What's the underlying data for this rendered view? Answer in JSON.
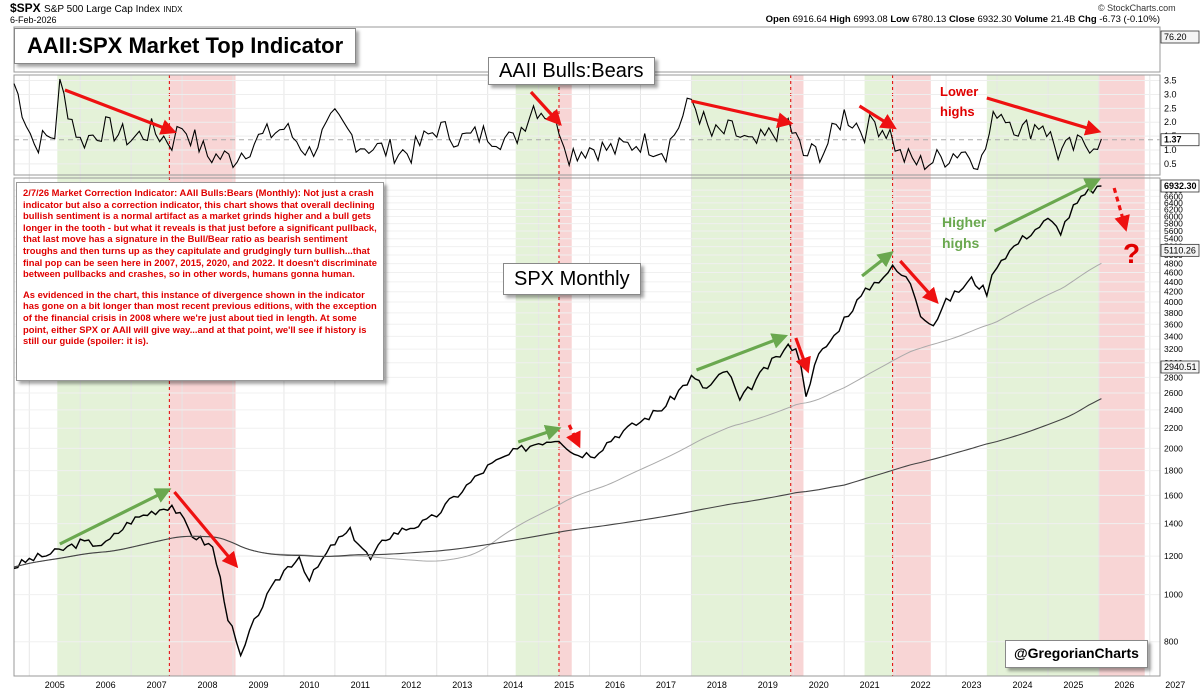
{
  "header": {
    "symbol": "$SPX",
    "name": "S&P 500 Large Cap Index",
    "exchange": "INDX",
    "date": "6-Feb-2026",
    "brand": "© StockCharts.com",
    "stats": [
      {
        "label": "Open",
        "value": "6916.64"
      },
      {
        "label": "High",
        "value": "6993.08"
      },
      {
        "label": "Low",
        "value": "6780.13"
      },
      {
        "label": "Close",
        "value": "6932.30"
      },
      {
        "label": "Volume",
        "value": "21.4B"
      },
      {
        "label": "Chg",
        "value": "-6.73 (-0.10%)"
      }
    ]
  },
  "title": "AAII:SPX Market Top Indicator",
  "indicator_label": "AAII Bulls:Bears",
  "price_label": "SPX Monthly",
  "note": {
    "paragraph1": "2/7/26 Market Correction Indicator: AAII Bulls:Bears (Monthly): Not just a crash indicator but also a correction indicator, this chart shows that overall declining bullish sentiment is a normal artifact as a market grinds higher and a bull gets longer in the tooth - but what it reveals is that just before a significant pullback, that last move has a signature in the Bull/Bear ratio as bearish sentiment troughs and then turns up as they capitulate and grudgingly turn bullish...that final pop can be seen here in 2007, 2015, 2020, and 2022. It doesn't discriminate between pullbacks and crashes, so in other words, humans gonna human.",
    "paragraph2": "As evidenced in the chart, this instance of divergence shown in the indicator has gone on a bit longer than most recent previous editions, with the exception of the financial crisis in 2008 where we're just about tied in length. At some point, either SPX or AAII will give way...and at that point, we'll see if history is still our guide (spoiler: it is)."
  },
  "annotations": {
    "lower_highs": "Lower highs",
    "higher_highs": "Higher highs",
    "question": "?"
  },
  "credit": "@GregorianCharts",
  "colors": {
    "up_arrow": "#6aa84f",
    "down_arrow": "#ee1111",
    "green_zone": "#e4f2d8",
    "red_zone": "#f8d5d5"
  },
  "chart_data": [
    {
      "type": "line",
      "name": "AAII Bulls:Bears",
      "right_axis_ticks": [
        0.5,
        1.0,
        1.5,
        2.0,
        2.5,
        3.0,
        3.5
      ],
      "last_value": "1.37",
      "top_readout": "76.20",
      "ylim": [
        0.1,
        3.7
      ],
      "reference_line": 1.37,
      "x": [
        2004.7,
        2005.1,
        2005.5,
        2005.6,
        2006.0,
        2006.5,
        2007.0,
        2007.4,
        2007.8,
        2008.0,
        2008.5,
        2009.0,
        2009.5,
        2010.0,
        2010.5,
        2011.0,
        2011.5,
        2012.0,
        2012.5,
        2013.0,
        2013.5,
        2014.0,
        2014.5,
        2014.9,
        2015.2,
        2015.4,
        2015.6,
        2016.0,
        2016.5,
        2017.0,
        2017.5,
        2018.0,
        2018.4,
        2018.8,
        2019.2,
        2019.6,
        2019.9,
        2020.2,
        2020.6,
        2021.0,
        2021.4,
        2021.6,
        2021.9,
        2022.1,
        2022.5,
        2022.9,
        2023.3,
        2023.7,
        2024.0,
        2024.5,
        2024.9,
        2025.2,
        2025.5,
        2025.9,
        2026.05
      ],
      "values": [
        3.4,
        1.2,
        1.6,
        3.3,
        1.3,
        1.8,
        1.4,
        1.7,
        1.3,
        1.9,
        0.8,
        0.7,
        1.4,
        1.8,
        0.9,
        2.1,
        1.2,
        1.0,
        0.9,
        1.8,
        1.4,
        1.6,
        1.3,
        2.6,
        2.3,
        1.9,
        0.9,
        1.1,
        1.0,
        1.3,
        1.0,
        2.8,
        1.5,
        1.7,
        1.1,
        1.6,
        2.0,
        0.8,
        1.0,
        2.3,
        1.7,
        2.0,
        1.6,
        0.8,
        0.5,
        0.7,
        1.0,
        0.6,
        2.5,
        1.7,
        2.0,
        0.9,
        1.1,
        1.3,
        1.4
      ]
    },
    {
      "type": "line",
      "name": "SPX Monthly",
      "scale": "log",
      "right_axis_ticks": [
        800,
        1000,
        1200,
        1400,
        1600,
        1800,
        2000,
        2200,
        2400,
        2600,
        2800,
        3000,
        3200,
        3400,
        3600,
        3800,
        4000,
        4200,
        4400,
        4600,
        4800,
        5000,
        5200,
        5400,
        5600,
        5800,
        6000,
        6200,
        6400,
        6600,
        6800
      ],
      "price_tags": [
        "6932.30",
        "5110.26",
        "2940.51"
      ],
      "ylim": [
        680,
        7200
      ],
      "x_ticks": [
        "2005",
        "2006",
        "2007",
        "2008",
        "2009",
        "2010",
        "2011",
        "2012",
        "2013",
        "2014",
        "2015",
        "2016",
        "2017",
        "2018",
        "2019",
        "2020",
        "2021",
        "2022",
        "2023",
        "2024",
        "2025",
        "2026",
        "2027"
      ],
      "x": [
        2004.7,
        2005.0,
        2005.5,
        2006.0,
        2006.5,
        2007.0,
        2007.4,
        2007.8,
        2008.2,
        2008.6,
        2008.9,
        2009.15,
        2009.5,
        2010.0,
        2010.3,
        2010.5,
        2011.0,
        2011.3,
        2011.7,
        2012.0,
        2012.4,
        2012.8,
        2013.0,
        2013.5,
        2014.0,
        2014.5,
        2015.0,
        2015.4,
        2015.7,
        2016.1,
        2016.5,
        2017.0,
        2017.5,
        2018.0,
        2018.3,
        2018.7,
        2018.95,
        2019.5,
        2019.9,
        2020.05,
        2020.25,
        2020.5,
        2020.8,
        2021.0,
        2021.5,
        2021.95,
        2022.3,
        2022.5,
        2022.75,
        2023.0,
        2023.5,
        2023.8,
        2024.0,
        2024.5,
        2025.0,
        2025.25,
        2025.5,
        2025.8,
        2026.05
      ],
      "values": [
        1140,
        1180,
        1220,
        1280,
        1270,
        1420,
        1480,
        1530,
        1330,
        1250,
        900,
        740,
        920,
        1120,
        1200,
        1070,
        1280,
        1350,
        1180,
        1310,
        1370,
        1410,
        1460,
        1640,
        1830,
        1960,
        2060,
        2100,
        1950,
        1950,
        2120,
        2270,
        2450,
        2800,
        2650,
        2900,
        2500,
        2950,
        3230,
        3250,
        2600,
        3100,
        3400,
        3700,
        4300,
        4700,
        4400,
        3800,
        3600,
        4000,
        4450,
        4200,
        4800,
        5400,
        5900,
        5600,
        6250,
        6750,
        6932
      ]
    }
  ]
}
